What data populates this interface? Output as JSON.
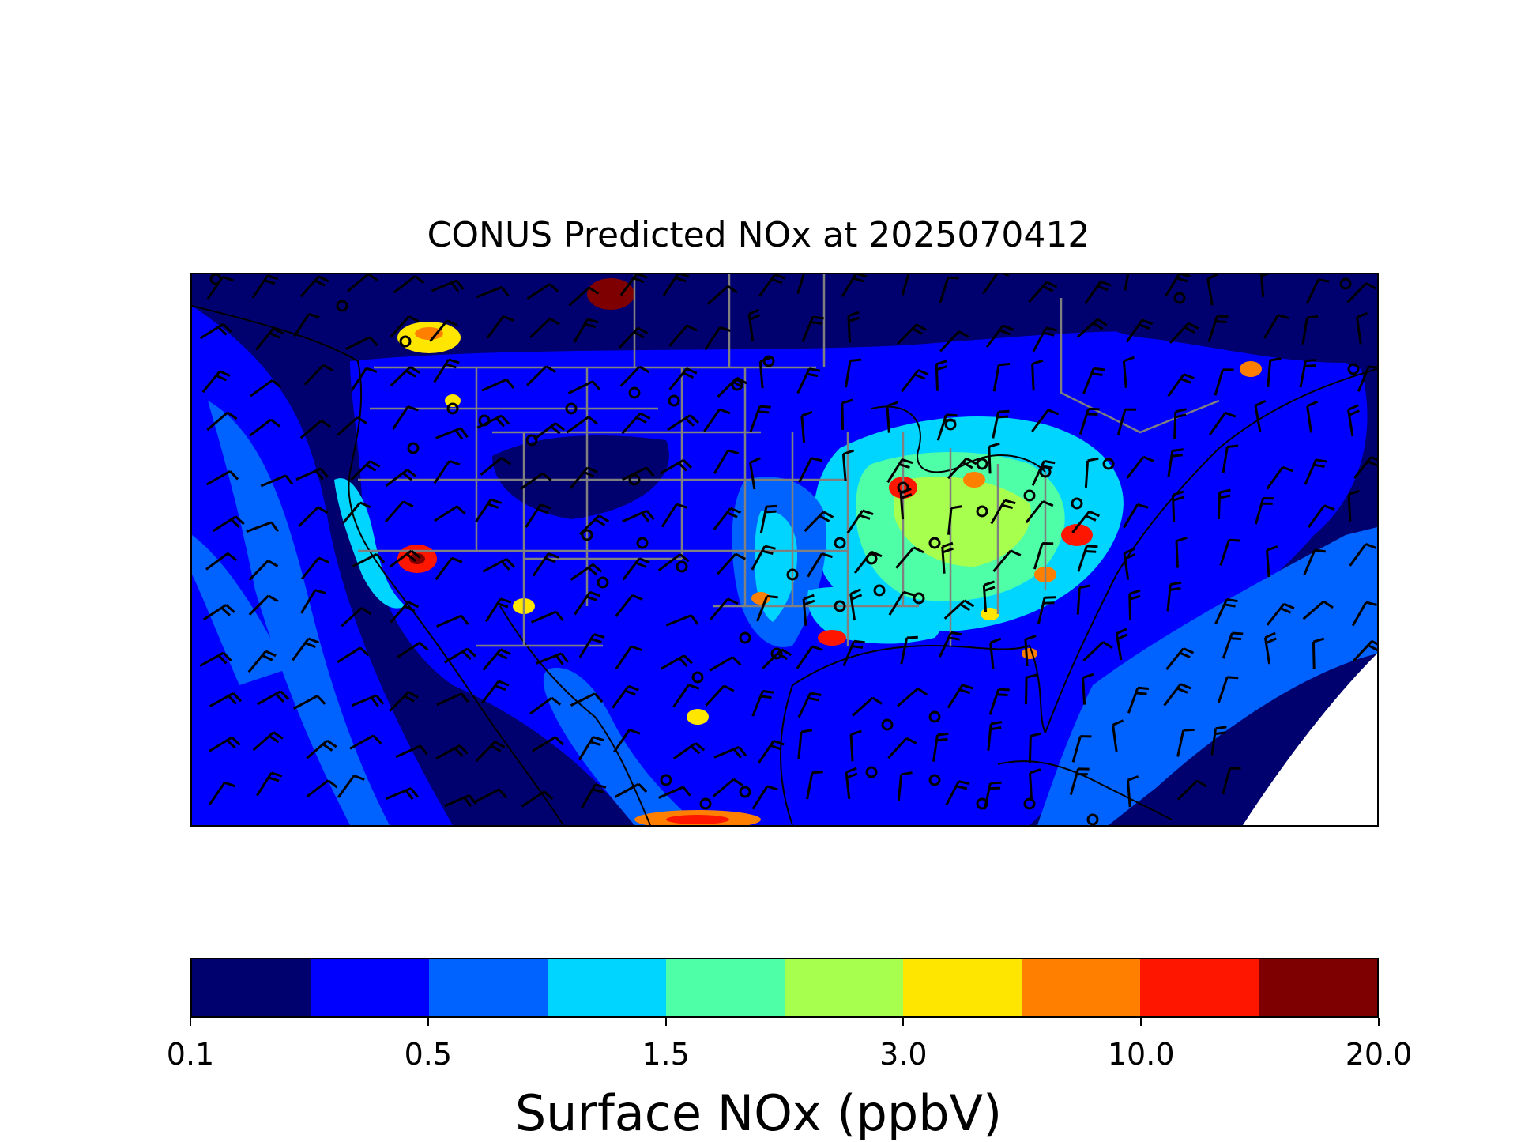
{
  "map": {
    "title": "CONUS Predicted NOx at 2025070412",
    "region": "CONUS",
    "features": [
      "NOx concentration field",
      "state boundaries",
      "coastlines",
      "wind barbs",
      "calm wind markers"
    ]
  },
  "colorbar": {
    "label": "Surface NOx (ppbV)",
    "levels": [
      "0.1",
      "0.5",
      "1.5",
      "3.0",
      "10.0",
      "20.0"
    ],
    "colors": [
      "#00006e",
      "#0000ff",
      "#0063ff",
      "#00d5ff",
      "#4effa8",
      "#a7ff4e",
      "#ffe600",
      "#ff7f00",
      "#ff1600",
      "#7f0000"
    ]
  }
}
